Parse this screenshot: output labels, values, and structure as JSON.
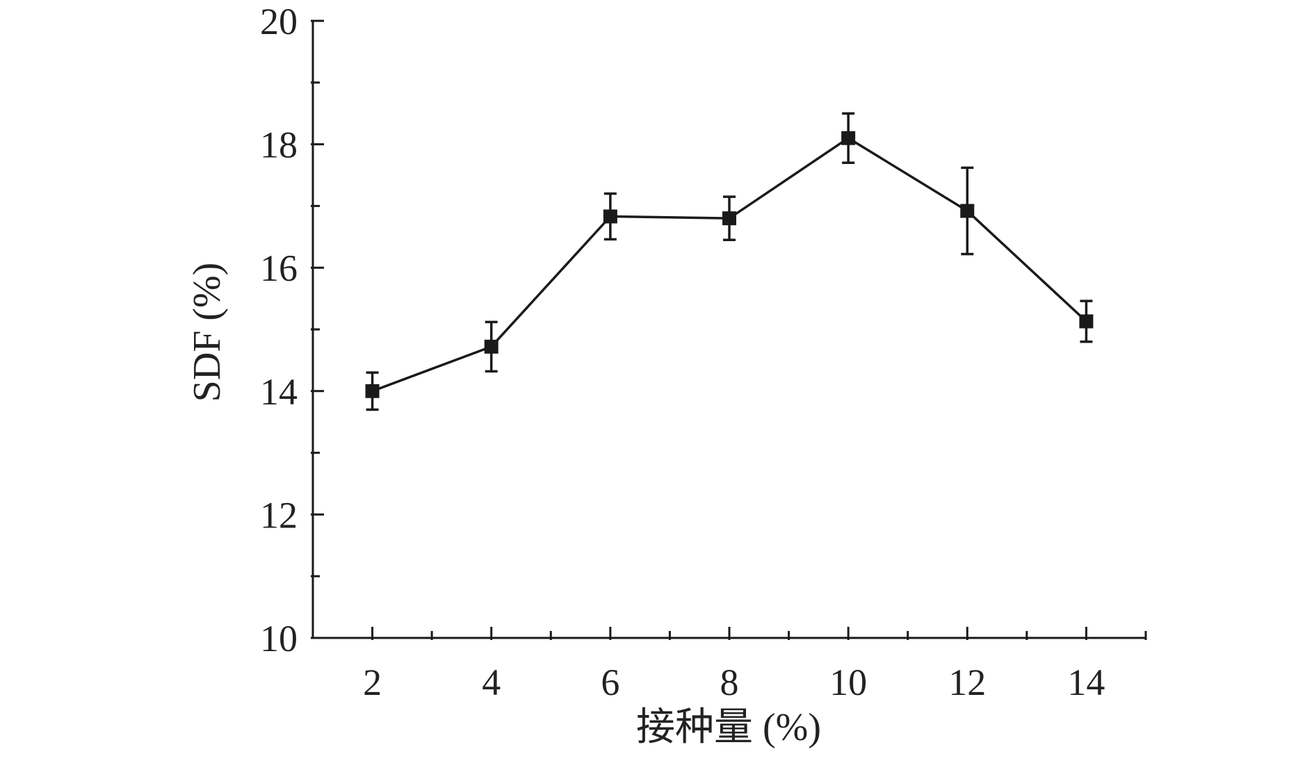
{
  "chart_data": {
    "type": "line",
    "title": "",
    "xlabel": "接种量 (%)",
    "ylabel": "SDF (%)",
    "xlim": [
      1,
      15
    ],
    "ylim": [
      10,
      20
    ],
    "x_ticks": [
      "2",
      "4",
      "6",
      "8",
      "10",
      "12",
      "14"
    ],
    "y_ticks": [
      "10",
      "12",
      "14",
      "16",
      "18",
      "20"
    ],
    "grid": false,
    "legend": "none",
    "marker": "square",
    "color": "#1a1a1a",
    "series": [
      {
        "x": [
          2,
          4,
          6,
          8,
          10,
          12,
          14
        ],
        "y": [
          14.0,
          14.72,
          16.83,
          16.8,
          18.1,
          16.92,
          15.13
        ],
        "error": [
          0.3,
          0.4,
          0.37,
          0.35,
          0.4,
          0.7,
          0.33
        ]
      }
    ]
  }
}
